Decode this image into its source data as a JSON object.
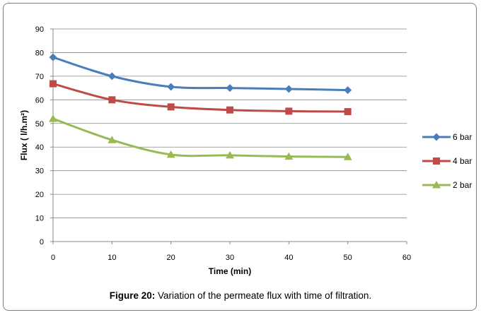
{
  "caption": {
    "label": "Figure 20:",
    "text": " Variation of the permeate flux with time of filtration."
  },
  "chart_data": {
    "type": "line",
    "xlabel": "Time (min)",
    "ylabel": "Flux ( l/h.m²)",
    "xlim": [
      0,
      60
    ],
    "ylim": [
      0,
      90
    ],
    "xticks": [
      0,
      10,
      20,
      30,
      40,
      50,
      60
    ],
    "yticks": [
      0,
      10,
      20,
      30,
      40,
      50,
      60,
      70,
      80,
      90
    ],
    "grid": "horizontal",
    "legend_position": "right",
    "x": [
      0,
      10,
      20,
      30,
      40,
      50
    ],
    "series": [
      {
        "name": "6 bar",
        "values": [
          78,
          70,
          65.5,
          65,
          64.6,
          64.1
        ],
        "color": "#4a7ebb",
        "marker": "diamond"
      },
      {
        "name": "4 bar",
        "values": [
          66.8,
          60,
          57,
          55.7,
          55.2,
          55
        ],
        "color": "#be4b48",
        "marker": "square"
      },
      {
        "name": "2 bar",
        "values": [
          52,
          43,
          36.8,
          36.5,
          36,
          35.8
        ],
        "color": "#98b954",
        "marker": "triangle"
      }
    ]
  }
}
